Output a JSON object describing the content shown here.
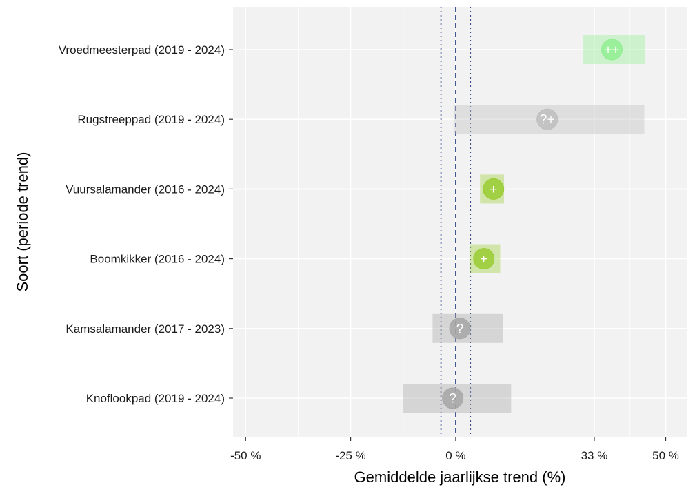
{
  "chart_data": {
    "type": "scatter",
    "orientation": "horizontal",
    "xlabel": "Gemiddelde jaarlijkse trend (%)",
    "ylabel": "Soort (periode trend)",
    "xlim": [
      -53,
      55
    ],
    "x_ticks": [
      {
        "value": -50,
        "label": "-50 %"
      },
      {
        "value": -25,
        "label": "-25 %"
      },
      {
        "value": 0,
        "label": "0 %"
      },
      {
        "value": 33,
        "label": "33 %"
      },
      {
        "value": 50,
        "label": "50 %"
      }
    ],
    "reference_lines": [
      {
        "value": 0,
        "style": "dashed"
      },
      {
        "value": -3.5,
        "style": "dotted"
      },
      {
        "value": 3.5,
        "style": "dotted"
      }
    ],
    "grid": true,
    "categories": [
      "Vroedmeesterpad (2019 - 2024)",
      "Rugstreeppad (2019 - 2024)",
      "Vuursalamander (2016 - 2024)",
      "Boomkikker (2016 - 2024)",
      "Kamsalamander (2017 - 2023)",
      "Knoflookpad (2019 - 2024)"
    ],
    "points": [
      {
        "estimate": 37.2,
        "lower": 30.4,
        "upper": 45.1,
        "symbol": "++",
        "color": "#90ee90"
      },
      {
        "estimate": 21.8,
        "lower": -0.5,
        "upper": 44.9,
        "symbol": "?+",
        "color": "#bebebe"
      },
      {
        "estimate": 9.0,
        "lower": 5.8,
        "upper": 11.5,
        "symbol": "+",
        "color": "#9acd32"
      },
      {
        "estimate": 6.7,
        "lower": 3.4,
        "upper": 10.6,
        "symbol": "+",
        "color": "#9acd32"
      },
      {
        "estimate": 1.0,
        "lower": -5.5,
        "upper": 11.2,
        "symbol": "?",
        "color": "#a6a6a6"
      },
      {
        "estimate": -0.7,
        "lower": -12.6,
        "upper": 13.2,
        "symbol": "?",
        "color": "#a6a6a6"
      }
    ],
    "colors": {
      "panel": "#f2f2f2",
      "grid": "#ffffff",
      "reference": "#3a4f8f"
    }
  }
}
